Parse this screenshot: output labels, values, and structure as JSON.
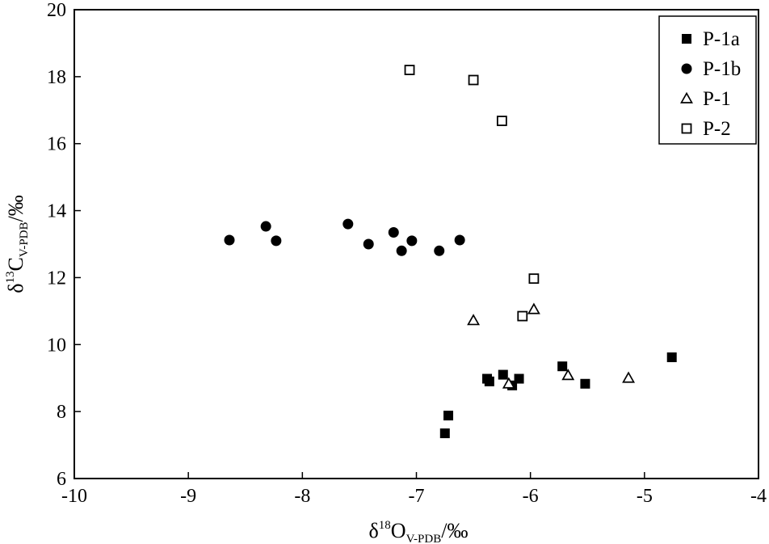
{
  "chart_data": {
    "type": "scatter",
    "x_axis": {
      "label_main": "δ",
      "label_sup": "18",
      "label_element": "O",
      "label_sub": "V-PDB",
      "label_unit": "/‰",
      "range": [
        -10,
        -4
      ],
      "ticks": [
        -10,
        -9,
        -8,
        -7,
        -6,
        -5,
        -4
      ]
    },
    "y_axis": {
      "label_main": "δ",
      "label_sup": "13",
      "label_element": "C",
      "label_sub": "V-PDB",
      "label_unit": "/‰",
      "range": [
        6,
        20
      ],
      "ticks": [
        6,
        8,
        10,
        12,
        14,
        16,
        18,
        20
      ]
    },
    "grid": false,
    "legend_position": "top-right",
    "series": [
      {
        "name": "P-1a",
        "marker": "filled-square",
        "points": [
          [
            -6.75,
            7.35
          ],
          [
            -6.72,
            7.88
          ],
          [
            -6.38,
            8.98
          ],
          [
            -6.36,
            8.9
          ],
          [
            -6.24,
            9.1
          ],
          [
            -6.16,
            8.78
          ],
          [
            -6.1,
            8.98
          ],
          [
            -5.72,
            9.35
          ],
          [
            -5.52,
            8.83
          ],
          [
            -4.76,
            9.62
          ]
        ]
      },
      {
        "name": "P-1b",
        "marker": "filled-circle",
        "points": [
          [
            -8.64,
            13.12
          ],
          [
            -8.32,
            13.53
          ],
          [
            -8.23,
            13.1
          ],
          [
            -7.6,
            13.6
          ],
          [
            -7.42,
            13.0
          ],
          [
            -7.2,
            13.35
          ],
          [
            -7.13,
            12.8
          ],
          [
            -7.04,
            13.1
          ],
          [
            -6.8,
            12.8
          ],
          [
            -6.62,
            13.12
          ]
        ]
      },
      {
        "name": "P-1",
        "marker": "open-triangle",
        "points": [
          [
            -6.5,
            10.72
          ],
          [
            -6.19,
            8.83
          ],
          [
            -5.97,
            11.05
          ],
          [
            -5.67,
            9.08
          ],
          [
            -5.14,
            9.0
          ]
        ]
      },
      {
        "name": "P-2",
        "marker": "open-square",
        "points": [
          [
            -7.06,
            18.2
          ],
          [
            -6.5,
            17.9
          ],
          [
            -6.25,
            16.68
          ],
          [
            -5.97,
            11.97
          ],
          [
            -6.07,
            10.85
          ]
        ]
      }
    ]
  }
}
